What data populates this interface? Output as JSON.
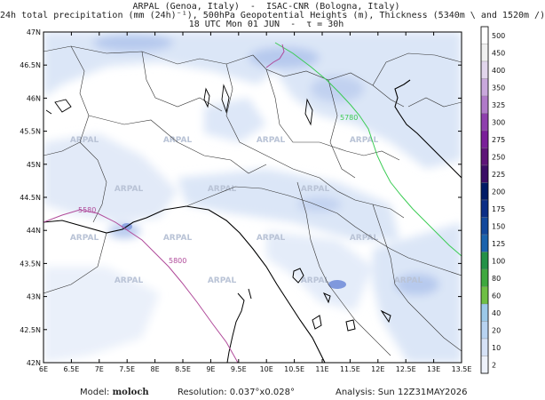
{
  "header": {
    "line1": "ARPAL (Genoa, Italy)  -  ISAC-CNR (Bologna, Italy)",
    "line2": "24h total precipitation (mm (24h)⁻¹), 500hPa Geopotential Heights (m), Thickness (5340m \\ and 1520m /)",
    "line3": "18 UTC Mon 01 JUN  -  τ = 30h"
  },
  "map": {
    "lat_ticks": [
      "47N",
      "46.5N",
      "46N",
      "45.5N",
      "45N",
      "44.5N",
      "44N",
      "43.5N",
      "43N",
      "42.5N",
      "42N"
    ],
    "lon_ticks": [
      "6E",
      "6.5E",
      "7E",
      "7.5E",
      "8E",
      "8.5E",
      "9E",
      "9.5E",
      "10E",
      "10.5E",
      "11E",
      "11.5E",
      "12E",
      "12.5E",
      "13E",
      "13.5E"
    ],
    "watermark": "ARPAL",
    "contour_labels": {
      "thickness_1520": "5780",
      "height_5500": "5800",
      "left_label": "5580"
    },
    "colors": {
      "precip_light": "#dbe6f7",
      "precip_mid": "#b6c9ee",
      "precip_dark": "#7f98dd",
      "thickness_green": "#3ccc55",
      "height_magenta": "#b04a9a",
      "coast": "#000000"
    }
  },
  "colorbar": {
    "levels": [
      "500",
      "450",
      "400",
      "350",
      "325",
      "300",
      "275",
      "250",
      "225",
      "200",
      "175",
      "150",
      "125",
      "100",
      "80",
      "60",
      "40",
      "20",
      "10",
      "2"
    ],
    "colors": [
      "#ffffff",
      "#f0f0f0",
      "#e2d6ec",
      "#c9a8dc",
      "#b07ac9",
      "#8e3fad",
      "#7a1f99",
      "#5e1478",
      "#3b0d66",
      "#001a66",
      "#0b2d86",
      "#12489c",
      "#1a63ad",
      "#239147",
      "#3ea83e",
      "#6ebf44",
      "#9cc9e8",
      "#b8d3f1",
      "#d6e2f7",
      "#eef2fb"
    ]
  },
  "footer": {
    "model_label": "Model:",
    "model_value": "moloch",
    "resolution": "Resolution: 0.037°x0.028°",
    "analysis": "Analysis: Sun 12Z31MAY2026"
  }
}
